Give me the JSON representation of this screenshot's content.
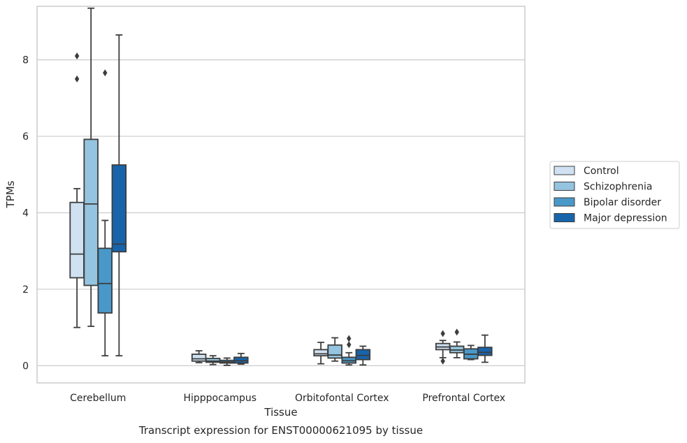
{
  "chart_data": {
    "type": "box",
    "caption": "Transcript expression for ENST00000621095 by tissue",
    "xlabel": "Tissue",
    "ylabel": "TPMs",
    "ylim": [
      -0.45,
      9.4
    ],
    "yticks": [
      0,
      2,
      4,
      6,
      8
    ],
    "grid": "horizontal",
    "legend_position": "right",
    "categories": [
      "Cerebellum",
      "Hipppocampus",
      "Orbitofontal Cortex",
      "Prefrontal Cortex"
    ],
    "series": [
      {
        "name": "Control",
        "color": "#d0e1f2",
        "boxes": [
          {
            "whislo": 1.0,
            "q1": 2.3,
            "med": 2.92,
            "q3": 4.27,
            "whishi": 4.63,
            "fliers": [
              8.1,
              7.5
            ]
          },
          {
            "whislo": 0.08,
            "q1": 0.12,
            "med": 0.18,
            "q3": 0.3,
            "whishi": 0.39,
            "fliers": []
          },
          {
            "whislo": 0.05,
            "q1": 0.26,
            "med": 0.31,
            "q3": 0.42,
            "whishi": 0.61,
            "fliers": []
          },
          {
            "whislo": 0.21,
            "q1": 0.42,
            "med": 0.49,
            "q3": 0.58,
            "whishi": 0.66,
            "fliers": [
              0.84,
              0.12
            ]
          }
        ]
      },
      {
        "name": "Schizophrenia",
        "color": "#94c4df",
        "boxes": [
          {
            "whislo": 1.03,
            "q1": 2.1,
            "med": 4.23,
            "q3": 5.92,
            "whishi": 9.35,
            "fliers": []
          },
          {
            "whislo": 0.03,
            "q1": 0.09,
            "med": 0.12,
            "q3": 0.19,
            "whishi": 0.26,
            "fliers": []
          },
          {
            "whislo": 0.12,
            "q1": 0.2,
            "med": 0.28,
            "q3": 0.54,
            "whishi": 0.73,
            "fliers": []
          },
          {
            "whislo": 0.21,
            "q1": 0.34,
            "med": 0.41,
            "q3": 0.51,
            "whishi": 0.62,
            "fliers": [
              0.88
            ]
          }
        ]
      },
      {
        "name": "Bipolar disorder",
        "color": "#4a98c9",
        "boxes": [
          {
            "whislo": 0.26,
            "q1": 1.38,
            "med": 2.15,
            "q3": 3.07,
            "whishi": 3.8,
            "fliers": [
              7.66
            ]
          },
          {
            "whislo": 0.01,
            "q1": 0.07,
            "med": 0.1,
            "q3": 0.14,
            "whishi": 0.2,
            "fliers": []
          },
          {
            "whislo": 0.02,
            "q1": 0.07,
            "med": 0.13,
            "q3": 0.22,
            "whishi": 0.34,
            "fliers": [
              0.71,
              0.55
            ]
          },
          {
            "whislo": 0.16,
            "q1": 0.18,
            "med": 0.3,
            "q3": 0.44,
            "whishi": 0.53,
            "fliers": []
          }
        ]
      },
      {
        "name": "Major depression",
        "color": "#1764ab",
        "boxes": [
          {
            "whislo": 0.26,
            "q1": 2.98,
            "med": 3.18,
            "q3": 5.25,
            "whishi": 8.65,
            "fliers": []
          },
          {
            "whislo": 0.04,
            "q1": 0.07,
            "med": 0.13,
            "q3": 0.22,
            "whishi": 0.32,
            "fliers": []
          },
          {
            "whislo": 0.02,
            "q1": 0.16,
            "med": 0.27,
            "q3": 0.42,
            "whishi": 0.51,
            "fliers": []
          },
          {
            "whislo": 0.09,
            "q1": 0.27,
            "med": 0.35,
            "q3": 0.48,
            "whishi": 0.8,
            "fliers": []
          }
        ]
      }
    ]
  }
}
